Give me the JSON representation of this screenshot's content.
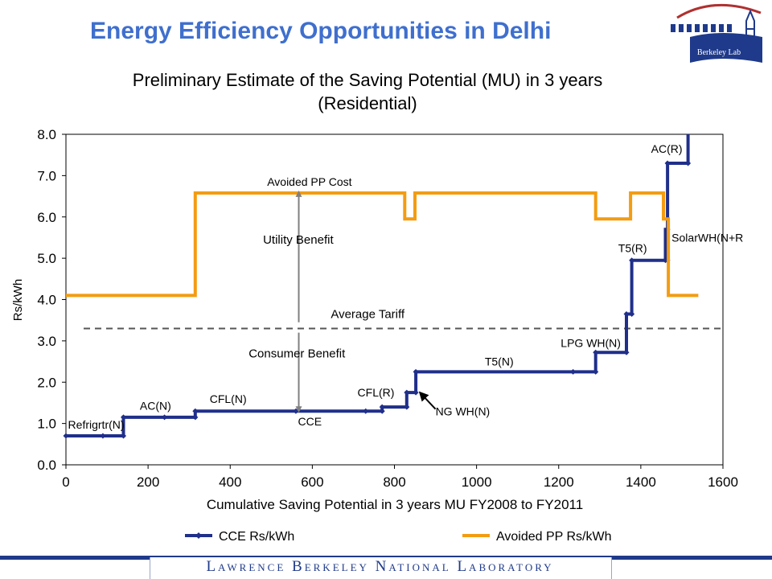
{
  "slide": {
    "title": "Energy Efficiency Opportunities in Delhi",
    "footer": "Lawrence Berkeley National Laboratory",
    "logo_text": "Berkeley Lab"
  },
  "colors": {
    "title": "#3f6fce",
    "cce_series": "#1f2f8a",
    "avoided_series": "#f39c12",
    "tariff_line": "#555555",
    "footer": "#1f3a8a"
  },
  "chart_data": {
    "type": "line",
    "title": "Preliminary Estimate of the Saving Potential (MU) in 3 years",
    "subtitle": "(Residential)",
    "xlabel": "Cumulative Saving Potential in 3 years MU FY2008 to FY2011",
    "ylabel": "Rs/kWh",
    "xlim": [
      0,
      1600
    ],
    "ylim": [
      0,
      8
    ],
    "x_ticks": [
      "0",
      "200",
      "400",
      "600",
      "800",
      "1000",
      "1200",
      "1400",
      "1600"
    ],
    "y_ticks": [
      "0.0",
      "1.0",
      "2.0",
      "3.0",
      "4.0",
      "5.0",
      "6.0",
      "7.0",
      "8.0"
    ],
    "grid": false,
    "legend_position": "bottom",
    "series": [
      {
        "name": "CCE Rs/kWh",
        "step": true,
        "points": [
          [
            0,
            0.7
          ],
          [
            90,
            0.7
          ],
          [
            140,
            0.7
          ],
          [
            140,
            1.15
          ],
          [
            240,
            1.15
          ],
          [
            315,
            1.15
          ],
          [
            315,
            1.3
          ],
          [
            560,
            1.3
          ],
          [
            730,
            1.3
          ],
          [
            770,
            1.3
          ],
          [
            770,
            1.4
          ],
          [
            830,
            1.4
          ],
          [
            830,
            1.75
          ],
          [
            852,
            1.75
          ],
          [
            852,
            2.25
          ],
          [
            1235,
            2.25
          ],
          [
            1290,
            2.25
          ],
          [
            1290,
            2.72
          ],
          [
            1365,
            2.72
          ],
          [
            1365,
            3.65
          ],
          [
            1378,
            3.65
          ],
          [
            1378,
            4.95
          ],
          [
            1460,
            4.95
          ],
          [
            1460,
            5.7
          ],
          [
            1465,
            5.7
          ],
          [
            1465,
            7.3
          ],
          [
            1515,
            7.3
          ],
          [
            1515,
            8.0
          ]
        ],
        "markers": [
          [
            0,
            0.7
          ],
          [
            90,
            0.7
          ],
          [
            140,
            0.7
          ],
          [
            140,
            1.15
          ],
          [
            240,
            1.15
          ],
          [
            315,
            1.15
          ],
          [
            315,
            1.3
          ],
          [
            560,
            1.3
          ],
          [
            730,
            1.3
          ],
          [
            770,
            1.3
          ],
          [
            770,
            1.4
          ],
          [
            830,
            1.4
          ],
          [
            830,
            1.75
          ],
          [
            852,
            1.75
          ],
          [
            852,
            2.25
          ],
          [
            1235,
            2.25
          ],
          [
            1290,
            2.25
          ],
          [
            1290,
            2.72
          ],
          [
            1365,
            2.72
          ],
          [
            1365,
            3.65
          ],
          [
            1378,
            3.65
          ],
          [
            1378,
            4.95
          ],
          [
            1460,
            4.95
          ],
          [
            1465,
            4.95
          ],
          [
            1465,
            5.7
          ],
          [
            1465,
            7.3
          ],
          [
            1515,
            7.3
          ]
        ]
      },
      {
        "name": "Avoided PP Rs/kWh",
        "step": true,
        "points": [
          [
            0,
            4.1
          ],
          [
            315,
            4.1
          ],
          [
            315,
            6.58
          ],
          [
            825,
            6.58
          ],
          [
            825,
            5.95
          ],
          [
            850,
            5.95
          ],
          [
            850,
            6.58
          ],
          [
            1290,
            6.58
          ],
          [
            1290,
            5.95
          ],
          [
            1375,
            5.95
          ],
          [
            1375,
            6.58
          ],
          [
            1455,
            6.58
          ],
          [
            1455,
            5.95
          ],
          [
            1467,
            5.95
          ],
          [
            1467,
            4.1
          ],
          [
            1540,
            4.1
          ]
        ]
      }
    ],
    "reference_lines": [
      {
        "label": "Average Tariff",
        "y": 3.3
      }
    ],
    "annotations": [
      {
        "text": "Refrigrtr(N)",
        "x": 5,
        "y": 0.88
      },
      {
        "text": "AC(N)",
        "x": 180,
        "y": 1.33
      },
      {
        "text": "CFL(N)",
        "x": 350,
        "y": 1.5
      },
      {
        "text": "CCE",
        "x": 565,
        "y": 0.95
      },
      {
        "text": "CFL(R)",
        "x": 710,
        "y": 1.65
      },
      {
        "text": "NG WH(N)",
        "x": 900,
        "y": 1.2
      },
      {
        "text": "T5(N)",
        "x": 1020,
        "y": 2.4
      },
      {
        "text": "LPG WH(N)",
        "x": 1205,
        "y": 2.85
      },
      {
        "text": "T5(R)",
        "x": 1345,
        "y": 5.15
      },
      {
        "text": "SolarWH(N+R",
        "x": 1475,
        "y": 5.4
      },
      {
        "text": "AC(R)",
        "x": 1425,
        "y": 7.55
      },
      {
        "text": "Avoided PP Cost",
        "x": 490,
        "y": 6.75
      },
      {
        "text": "Utility Benefit",
        "x": 480,
        "y": 5.35
      },
      {
        "text": "Average Tariff",
        "x": 645,
        "y": 3.55
      },
      {
        "text": "Consumer Benefit",
        "x": 445,
        "y": 2.6
      }
    ],
    "arrows": [
      {
        "name": "benefit-arrow-up",
        "x": 567,
        "y_from": 3.45,
        "y_to": 6.6
      },
      {
        "name": "benefit-arrow-down",
        "x": 567,
        "y_from": 3.2,
        "y_to": 1.3
      },
      {
        "name": "ngwh-pointer",
        "x_from": 900,
        "y_from": 1.35,
        "x_to": 862,
        "y_to": 1.75
      }
    ]
  }
}
